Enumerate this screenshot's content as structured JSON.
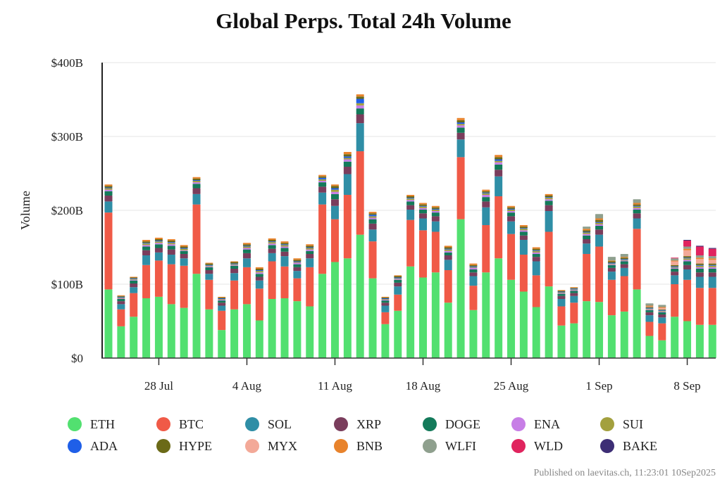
{
  "chart_data": {
    "type": "bar",
    "stacked": true,
    "title": "Global Perps. Total 24h Volume",
    "ylabel": "Volume",
    "xlabel": "",
    "ylim": [
      0,
      400
    ],
    "yticks": [
      {
        "value": 0,
        "label": "$0"
      },
      {
        "value": 100,
        "label": "$100B"
      },
      {
        "value": 200,
        "label": "$200B"
      },
      {
        "value": 300,
        "label": "$300B"
      },
      {
        "value": 400,
        "label": "$400B"
      }
    ],
    "grid": true,
    "legend_position": "bottom",
    "categories": [
      "2025-07-24",
      "2025-07-25",
      "2025-07-26",
      "2025-07-27",
      "2025-07-28",
      "2025-07-29",
      "2025-07-30",
      "2025-07-31",
      "2025-08-01",
      "2025-08-02",
      "2025-08-03",
      "2025-08-04",
      "2025-08-05",
      "2025-08-06",
      "2025-08-07",
      "2025-08-08",
      "2025-08-09",
      "2025-08-10",
      "2025-08-11",
      "2025-08-12",
      "2025-08-13",
      "2025-08-14",
      "2025-08-15",
      "2025-08-16",
      "2025-08-17",
      "2025-08-18",
      "2025-08-19",
      "2025-08-20",
      "2025-08-21",
      "2025-08-22",
      "2025-08-23",
      "2025-08-24",
      "2025-08-25",
      "2025-08-26",
      "2025-08-27",
      "2025-08-28",
      "2025-08-29",
      "2025-08-30",
      "2025-08-31",
      "2025-09-01",
      "2025-09-02",
      "2025-09-03",
      "2025-09-04",
      "2025-09-05",
      "2025-09-06",
      "2025-09-07",
      "2025-09-08",
      "2025-09-09",
      "2025-09-10"
    ],
    "x_ticks": [
      {
        "date": "2025-07-28",
        "label": "28 Jul"
      },
      {
        "date": "2025-08-04",
        "label": "4 Aug"
      },
      {
        "date": "2025-08-11",
        "label": "11 Aug"
      },
      {
        "date": "2025-08-18",
        "label": "18 Aug"
      },
      {
        "date": "2025-08-25",
        "label": "25 Aug"
      },
      {
        "date": "2025-09-01",
        "label": "1 Sep"
      },
      {
        "date": "2025-09-08",
        "label": "8 Sep"
      }
    ],
    "series": [
      {
        "name": "ETH",
        "color": "#52e070",
        "values": [
          93,
          43,
          56,
          81,
          83,
          73,
          68,
          114,
          66,
          38,
          66,
          73,
          51,
          80,
          81,
          77,
          70,
          114,
          130,
          135,
          167,
          108,
          46,
          64,
          124,
          109,
          116,
          75,
          188,
          65,
          116,
          135,
          106,
          90,
          69,
          97,
          44,
          47,
          77,
          76,
          58,
          63,
          93,
          30,
          24,
          56,
          50,
          45,
          45
        ]
      },
      {
        "name": "BTC",
        "color": "#f05a47",
        "values": [
          104,
          23,
          32,
          45,
          49,
          54,
          57,
          94,
          40,
          26,
          39,
          50,
          43,
          51,
          43,
          31,
          53,
          94,
          58,
          86,
          113,
          50,
          16,
          22,
          63,
          64,
          55,
          44,
          84,
          33,
          64,
          84,
          62,
          50,
          43,
          74,
          26,
          28,
          64,
          75,
          48,
          48,
          82,
          19,
          23,
          44,
          56,
          50,
          50
        ]
      },
      {
        "name": "SOL",
        "color": "#2f8ea6",
        "values": [
          15,
          7,
          8,
          13,
          11,
          13,
          10,
          14,
          8,
          7,
          10,
          12,
          11,
          11,
          14,
          10,
          12,
          16,
          18,
          28,
          38,
          16,
          9,
          11,
          14,
          16,
          14,
          14,
          24,
          13,
          24,
          27,
          17,
          20,
          19,
          28,
          10,
          9,
          14,
          16,
          11,
          11,
          14,
          9,
          8,
          12,
          14,
          15,
          15
        ]
      },
      {
        "name": "XRP",
        "color": "#7a3d5c",
        "values": [
          8,
          4,
          5,
          7,
          6,
          7,
          6,
          8,
          5,
          4,
          6,
          7,
          5,
          6,
          6,
          5,
          6,
          8,
          9,
          10,
          12,
          8,
          4,
          5,
          6,
          7,
          7,
          6,
          9,
          5,
          8,
          9,
          7,
          6,
          6,
          8,
          4,
          4,
          6,
          7,
          5,
          5,
          7,
          4,
          4,
          5,
          6,
          6,
          6
        ]
      },
      {
        "name": "DOGE",
        "color": "#137a5a",
        "values": [
          6,
          3,
          4,
          5,
          5,
          5,
          4,
          6,
          4,
          3,
          4,
          5,
          4,
          5,
          5,
          4,
          4,
          6,
          7,
          7,
          8,
          6,
          3,
          4,
          5,
          5,
          5,
          4,
          7,
          4,
          6,
          7,
          5,
          5,
          4,
          6,
          3,
          3,
          5,
          5,
          4,
          4,
          5,
          3,
          3,
          4,
          5,
          5,
          5
        ]
      },
      {
        "name": "ENA",
        "color": "#c77ee6",
        "values": [
          2,
          1,
          1,
          2,
          2,
          2,
          1,
          2,
          1,
          1,
          1,
          2,
          2,
          2,
          2,
          2,
          2,
          2,
          3,
          3,
          4,
          2,
          1,
          1,
          2,
          2,
          2,
          2,
          3,
          2,
          3,
          3,
          2,
          2,
          2,
          2,
          1,
          1,
          2,
          2,
          1,
          1,
          2,
          1,
          1,
          1,
          2,
          2,
          2
        ]
      },
      {
        "name": "SUI",
        "color": "#a3a03e",
        "values": [
          2,
          1,
          1,
          2,
          2,
          2,
          2,
          2,
          1,
          1,
          1,
          2,
          2,
          2,
          2,
          1,
          2,
          2,
          3,
          2,
          3,
          2,
          1,
          1,
          2,
          2,
          2,
          2,
          2,
          1,
          2,
          2,
          2,
          2,
          2,
          2,
          1,
          1,
          2,
          2,
          1,
          1,
          2,
          1,
          1,
          1,
          2,
          2,
          2
        ]
      },
      {
        "name": "ADA",
        "color": "#1f5fe8",
        "values": [
          1,
          1,
          1,
          1,
          1,
          1,
          1,
          1,
          1,
          1,
          1,
          1,
          1,
          1,
          1,
          1,
          1,
          2,
          2,
          2,
          6,
          2,
          1,
          1,
          1,
          1,
          1,
          1,
          2,
          1,
          1,
          2,
          1,
          1,
          1,
          1,
          1,
          1,
          1,
          1,
          1,
          1,
          1,
          1,
          1,
          1,
          1,
          1,
          1
        ]
      },
      {
        "name": "HYPE",
        "color": "#6b6a17",
        "values": [
          2,
          1,
          1,
          2,
          2,
          2,
          2,
          2,
          2,
          1,
          2,
          2,
          2,
          2,
          2,
          2,
          2,
          2,
          3,
          3,
          3,
          2,
          1,
          2,
          2,
          2,
          2,
          2,
          3,
          2,
          2,
          3,
          2,
          2,
          2,
          2,
          1,
          1,
          2,
          3,
          2,
          2,
          2,
          1,
          1,
          2,
          2,
          2,
          2
        ]
      },
      {
        "name": "MYX",
        "color": "#f3a998",
        "values": [
          0,
          0,
          0,
          0,
          0,
          0,
          0,
          0,
          0,
          0,
          0,
          0,
          0,
          0,
          0,
          0,
          0,
          0,
          0,
          0,
          0,
          0,
          0,
          0,
          0,
          0,
          0,
          0,
          0,
          0,
          0,
          0,
          0,
          0,
          0,
          0,
          0,
          0,
          0,
          0,
          0,
          0,
          0,
          1,
          2,
          5,
          8,
          6,
          5
        ]
      },
      {
        "name": "BNB",
        "color": "#e8832c",
        "values": [
          2,
          1,
          1,
          2,
          2,
          2,
          2,
          2,
          1,
          1,
          1,
          2,
          2,
          2,
          2,
          2,
          2,
          2,
          2,
          3,
          3,
          2,
          1,
          1,
          2,
          2,
          2,
          2,
          3,
          2,
          2,
          3,
          2,
          2,
          2,
          2,
          1,
          1,
          2,
          2,
          1,
          1,
          2,
          1,
          1,
          1,
          2,
          2,
          2
        ]
      },
      {
        "name": "WLFI",
        "color": "#8fa08e",
        "values": [
          0,
          0,
          0,
          0,
          0,
          0,
          0,
          0,
          0,
          0,
          0,
          0,
          0,
          0,
          0,
          0,
          0,
          0,
          0,
          0,
          0,
          0,
          0,
          0,
          0,
          0,
          0,
          0,
          0,
          0,
          0,
          0,
          0,
          0,
          0,
          0,
          0,
          0,
          3,
          6,
          5,
          4,
          5,
          3,
          3,
          3,
          3,
          3,
          3
        ]
      },
      {
        "name": "WLD",
        "color": "#e0245e",
        "values": [
          0,
          0,
          0,
          0,
          0,
          0,
          0,
          0,
          0,
          0,
          0,
          0,
          0,
          0,
          0,
          0,
          0,
          0,
          0,
          0,
          0,
          0,
          0,
          0,
          0,
          0,
          0,
          0,
          0,
          0,
          0,
          0,
          0,
          0,
          0,
          0,
          0,
          0,
          0,
          0,
          0,
          0,
          0,
          0,
          0,
          1,
          8,
          12,
          10
        ]
      },
      {
        "name": "BAKE",
        "color": "#3d2e75",
        "values": [
          0,
          0,
          0,
          0,
          0,
          0,
          0,
          0,
          0,
          0,
          0,
          0,
          0,
          0,
          0,
          0,
          0,
          0,
          0,
          0,
          0,
          0,
          0,
          0,
          0,
          0,
          0,
          0,
          0,
          0,
          0,
          0,
          0,
          0,
          0,
          0,
          0,
          0,
          0,
          0,
          0,
          0,
          0,
          0,
          0,
          0,
          1,
          1,
          1
        ]
      }
    ]
  },
  "footer": "Published on laevitas.ch, 11:23:01 10Sep2025"
}
